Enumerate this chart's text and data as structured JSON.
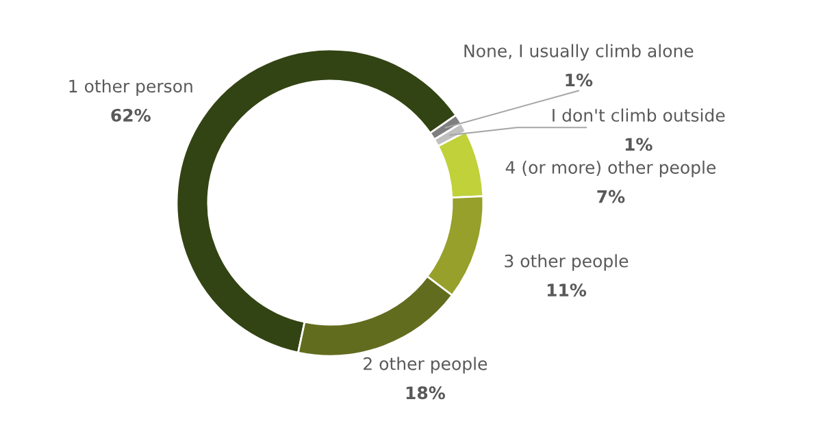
{
  "chart_data": {
    "type": "donut",
    "categories": [
      "1 other person",
      "None, I usually climb alone",
      "I don't climb outside",
      "4 (or more) other people",
      "3 other people",
      "2 other people"
    ],
    "values": [
      62,
      1,
      1,
      7,
      11,
      18
    ],
    "colors": [
      "#334414",
      "#7f7f7f",
      "#c0c0c0",
      "#c0d13a",
      "#96a02a",
      "#626c1e"
    ],
    "value_labels": [
      "62%",
      "1%",
      "1%",
      "7%",
      "11%",
      "18%"
    ],
    "legend": false
  }
}
